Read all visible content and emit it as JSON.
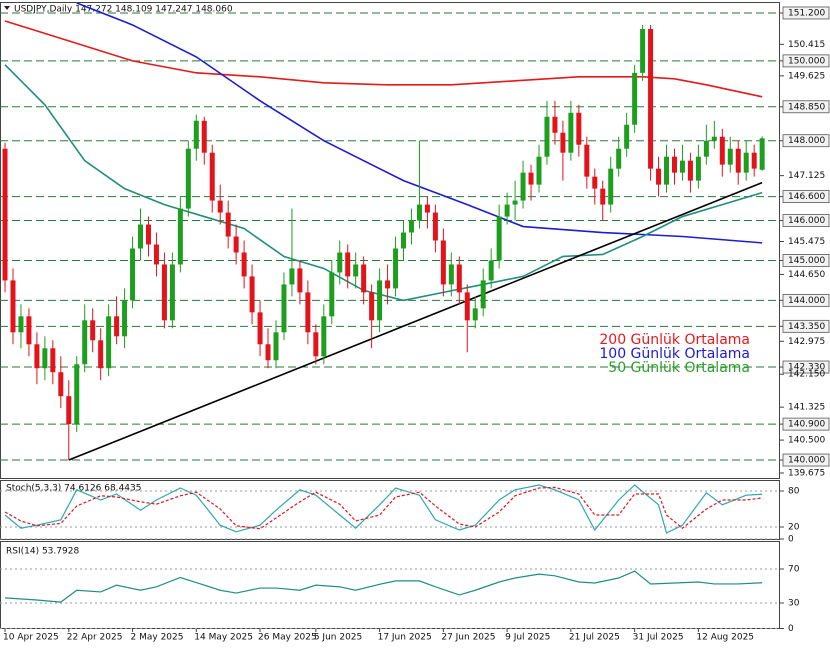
{
  "chart_data": [
    {
      "type": "candlestick",
      "title": "USDJPY,Daily 147.272 148.109 147.247 148.060",
      "categories": [
        "10 Apr 2025",
        null,
        null,
        null,
        null,
        null,
        null,
        null,
        "22 Apr 2025",
        null,
        null,
        null,
        null,
        null,
        null,
        null,
        "2 May 2025",
        null,
        null,
        null,
        null,
        null,
        null,
        null,
        "14 May 2025",
        null,
        null,
        null,
        null,
        null,
        null,
        null,
        "26 May 2025",
        null,
        null,
        null,
        null,
        null,
        null,
        "5 Jun 2025",
        null,
        null,
        null,
        null,
        null,
        null,
        null,
        "17 Jun 2025",
        null,
        null,
        null,
        null,
        null,
        null,
        null,
        "27 Jun 2025",
        null,
        null,
        null,
        null,
        null,
        null,
        null,
        "9 Jul 2025",
        null,
        null,
        null,
        null,
        null,
        null,
        null,
        "21 Jul 2025",
        null,
        null,
        null,
        null,
        null,
        null,
        null,
        "31 Jul 2025",
        null,
        null,
        null,
        null,
        null,
        null,
        null,
        "12 Aug 2025",
        null,
        null,
        null,
        null,
        null,
        null,
        null,
        null
      ],
      "xlim": [
        -0.63,
        97.24
      ],
      "ylim": [
        139.55,
        151.45
      ],
      "yticks": [
        {
          "value": 151.2,
          "label": "151.200",
          "level": true
        },
        {
          "value": 150.415,
          "label": "150.415"
        },
        {
          "value": 150.0,
          "label": "150.000",
          "level": true
        },
        {
          "value": 149.625,
          "label": "149.625"
        },
        {
          "value": 148.85,
          "label": "148.850",
          "level": true
        },
        {
          "value": 148.0,
          "label": "148.000",
          "level": true
        },
        {
          "value": 147.125,
          "label": "147.125"
        },
        {
          "value": 146.6,
          "label": "146.600",
          "level": true
        },
        {
          "value": 146.0,
          "label": "146.000",
          "level": true
        },
        {
          "value": 145.475,
          "label": "145.475"
        },
        {
          "value": 145.0,
          "label": "145.000",
          "level": true
        },
        {
          "value": 144.65,
          "label": "144.650"
        },
        {
          "value": 144.0,
          "label": "144.000",
          "level": true
        },
        {
          "value": 143.35,
          "label": "143.350",
          "level": true
        },
        {
          "value": 142.975,
          "label": "142.975"
        },
        {
          "value": 142.33,
          "label": "142.330",
          "level": true
        },
        {
          "value": 142.15,
          "label": "142.150"
        },
        {
          "value": 141.325,
          "label": "141.325"
        },
        {
          "value": 140.9,
          "label": "140.900",
          "level": true
        },
        {
          "value": 140.5,
          "label": "140.500"
        },
        {
          "value": 140.0,
          "label": "140.000",
          "level": true
        },
        {
          "value": 139.675,
          "label": "139.675"
        }
      ],
      "up_color": "#1e9e1e",
      "down_color": "#e3131b",
      "level_color": "#2a7a3a",
      "ohlc": [
        [
          147.8,
          147.95,
          144.2,
          144.5
        ],
        [
          144.5,
          144.8,
          142.9,
          143.2
        ],
        [
          143.2,
          143.9,
          142.8,
          143.6
        ],
        [
          143.6,
          143.8,
          142.6,
          142.9
        ],
        [
          142.9,
          143.2,
          141.9,
          142.3
        ],
        [
          142.3,
          143.1,
          142.0,
          142.8
        ],
        [
          142.8,
          143.0,
          141.9,
          142.2
        ],
        [
          142.2,
          142.6,
          141.3,
          141.6
        ],
        [
          141.6,
          142.0,
          140.0,
          140.9
        ],
        [
          140.9,
          142.6,
          140.7,
          142.4
        ],
        [
          142.4,
          143.9,
          142.2,
          143.5
        ],
        [
          143.5,
          143.8,
          142.7,
          143.0
        ],
        [
          143.0,
          143.3,
          142.0,
          142.3
        ],
        [
          142.3,
          143.9,
          142.1,
          143.6
        ],
        [
          143.6,
          144.1,
          142.9,
          143.1
        ],
        [
          143.1,
          144.3,
          142.8,
          144.0
        ],
        [
          144.0,
          145.6,
          143.8,
          145.3
        ],
        [
          145.3,
          146.3,
          145.0,
          145.9
        ],
        [
          145.9,
          146.1,
          145.1,
          145.4
        ],
        [
          145.4,
          145.7,
          144.6,
          144.9
        ],
        [
          144.9,
          145.2,
          143.3,
          143.5
        ],
        [
          143.5,
          145.2,
          143.3,
          144.9
        ],
        [
          144.9,
          146.6,
          144.7,
          146.3
        ],
        [
          146.3,
          148.0,
          146.1,
          147.8
        ],
        [
          147.8,
          148.65,
          147.5,
          148.5
        ],
        [
          148.5,
          148.6,
          147.4,
          147.7
        ],
        [
          147.7,
          147.9,
          146.2,
          146.5
        ],
        [
          146.5,
          146.9,
          145.9,
          146.2
        ],
        [
          146.2,
          146.5,
          145.3,
          145.6
        ],
        [
          145.6,
          145.9,
          144.9,
          145.2
        ],
        [
          145.2,
          145.5,
          144.3,
          144.6
        ],
        [
          144.6,
          144.9,
          143.4,
          143.7
        ],
        [
          143.7,
          144.0,
          142.6,
          142.9
        ],
        [
          142.9,
          143.3,
          142.3,
          142.5
        ],
        [
          142.5,
          143.5,
          142.3,
          143.2
        ],
        [
          143.2,
          144.7,
          143.0,
          144.4
        ],
        [
          144.4,
          146.3,
          144.1,
          144.8
        ],
        [
          144.8,
          145.0,
          143.9,
          144.2
        ],
        [
          144.2,
          144.5,
          142.9,
          143.2
        ],
        [
          143.2,
          143.4,
          142.4,
          142.6
        ],
        [
          142.6,
          143.9,
          142.4,
          143.6
        ],
        [
          143.6,
          145.0,
          143.4,
          144.7
        ],
        [
          144.7,
          145.5,
          144.4,
          145.2
        ],
        [
          145.2,
          145.4,
          144.3,
          144.6
        ],
        [
          144.6,
          145.2,
          144.3,
          144.9
        ],
        [
          144.9,
          145.1,
          143.9,
          144.2
        ],
        [
          144.2,
          144.4,
          142.8,
          143.5
        ],
        [
          143.5,
          144.8,
          143.2,
          144.5
        ],
        [
          144.5,
          144.9,
          143.9,
          144.3
        ],
        [
          144.3,
          145.6,
          144.1,
          145.3
        ],
        [
          145.3,
          146.0,
          145.0,
          145.7
        ],
        [
          145.7,
          146.3,
          145.4,
          146.0
        ],
        [
          146.0,
          148.0,
          145.8,
          146.4
        ],
        [
          146.4,
          146.6,
          145.8,
          146.2
        ],
        [
          146.2,
          146.4,
          145.2,
          145.5
        ],
        [
          145.5,
          145.8,
          144.1,
          144.4
        ],
        [
          144.4,
          145.2,
          144.1,
          144.9
        ],
        [
          144.9,
          145.1,
          143.9,
          144.2
        ],
        [
          144.2,
          144.4,
          142.7,
          143.5
        ],
        [
          143.5,
          144.1,
          143.3,
          143.8
        ],
        [
          143.8,
          144.8,
          143.6,
          144.5
        ],
        [
          144.5,
          145.3,
          144.3,
          145.0
        ],
        [
          145.0,
          146.4,
          144.8,
          146.1
        ],
        [
          146.1,
          146.7,
          145.9,
          146.4
        ],
        [
          146.4,
          147.0,
          146.0,
          146.5
        ],
        [
          146.5,
          147.5,
          146.3,
          147.2
        ],
        [
          147.2,
          147.4,
          146.5,
          146.9
        ],
        [
          146.9,
          147.9,
          146.7,
          147.6
        ],
        [
          147.6,
          149.0,
          147.4,
          148.6
        ],
        [
          148.6,
          149.0,
          147.9,
          148.2
        ],
        [
          148.2,
          148.5,
          147.0,
          147.7
        ],
        [
          147.7,
          149.0,
          147.5,
          148.7
        ],
        [
          148.7,
          148.9,
          147.6,
          147.9
        ],
        [
          147.9,
          148.1,
          146.8,
          147.1
        ],
        [
          147.1,
          147.3,
          146.4,
          146.8
        ],
        [
          146.8,
          147.0,
          146.0,
          146.4
        ],
        [
          146.4,
          147.6,
          146.2,
          147.3
        ],
        [
          147.3,
          148.1,
          147.1,
          147.8
        ],
        [
          147.8,
          148.7,
          147.6,
          148.4
        ],
        [
          148.4,
          149.9,
          148.2,
          149.7
        ],
        [
          149.7,
          150.9,
          149.5,
          150.8
        ],
        [
          150.8,
          150.9,
          147.0,
          147.3
        ],
        [
          147.3,
          147.6,
          146.6,
          146.9
        ],
        [
          146.9,
          147.9,
          146.7,
          147.6
        ],
        [
          147.6,
          147.8,
          146.9,
          147.2
        ],
        [
          147.2,
          147.9,
          147.0,
          147.5
        ],
        [
          147.5,
          147.7,
          146.7,
          147.0
        ],
        [
          147.0,
          147.9,
          146.8,
          147.6
        ],
        [
          147.6,
          148.4,
          147.4,
          148.0
        ],
        [
          148.0,
          148.5,
          147.8,
          148.1
        ],
        [
          148.1,
          148.3,
          147.1,
          147.4
        ],
        [
          147.4,
          148.1,
          147.2,
          147.8
        ],
        [
          147.8,
          148.0,
          146.9,
          147.2
        ],
        [
          147.2,
          148.0,
          147.0,
          147.7
        ],
        [
          147.7,
          147.9,
          147.1,
          147.3
        ],
        [
          147.272,
          148.109,
          147.247,
          148.06
        ]
      ],
      "lines": [
        {
          "name": "200 Günlük Ortalama",
          "color": "#e31a1c",
          "x": [
            0,
            8,
            16,
            24,
            32,
            40,
            48,
            56,
            64,
            72,
            80,
            84,
            88,
            95
          ],
          "values": [
            151.0,
            150.5,
            150.0,
            149.7,
            149.6,
            149.45,
            149.4,
            149.4,
            149.5,
            149.6,
            149.6,
            149.55,
            149.4,
            149.1
          ]
        },
        {
          "name": "100 Günlük Ortalama",
          "color": "#1c1cd4",
          "x": [
            9,
            16,
            24,
            32,
            40,
            50,
            58,
            65,
            75,
            85,
            95
          ],
          "values": [
            151.45,
            150.9,
            150.1,
            149.0,
            148.0,
            147.0,
            146.4,
            145.85,
            145.7,
            145.6,
            145.44
          ]
        },
        {
          "name": "50 Günlük Ortalama",
          "color": "#1f8f7a",
          "x": [
            0,
            5,
            10,
            15,
            20,
            25,
            30,
            35,
            40,
            45,
            50,
            55,
            60,
            65,
            70,
            75,
            80,
            85,
            90,
            95
          ],
          "values": [
            149.9,
            148.9,
            147.5,
            146.8,
            146.4,
            146.1,
            145.8,
            145.1,
            144.8,
            144.25,
            144.0,
            144.2,
            144.4,
            144.6,
            145.1,
            145.15,
            145.6,
            146.1,
            146.4,
            146.7
          ]
        }
      ],
      "legend_colors": [
        "#e31a1c",
        "#1c1cd4",
        "#2aa02a"
      ],
      "trendline": {
        "color": "#000000",
        "x": [
          8,
          95
        ],
        "values": [
          140.0,
          146.95
        ]
      }
    },
    {
      "type": "line",
      "title": "Stoch(5,3,3) 74.6126 68.4435",
      "xlim": [
        -0.63,
        97.24
      ],
      "ylim": [
        0,
        100
      ],
      "yticks": [
        0,
        20,
        80
      ],
      "series": [
        {
          "color": "#2fa6b0",
          "dash": false,
          "x": [
            0,
            2,
            4,
            7,
            9,
            12,
            14,
            17,
            19,
            22,
            24,
            27,
            29,
            32,
            34,
            37,
            39,
            42,
            44,
            47,
            49,
            52,
            54,
            57,
            59,
            62,
            64,
            67,
            69,
            72,
            74,
            77,
            79,
            82,
            83,
            85,
            88,
            90,
            93,
            95
          ],
          "values": [
            40,
            18,
            23,
            32,
            82,
            65,
            75,
            48,
            65,
            85,
            73,
            23,
            12,
            23,
            48,
            82,
            73,
            40,
            18,
            57,
            85,
            73,
            32,
            15,
            23,
            65,
            82,
            90,
            82,
            65,
            15,
            65,
            90,
            57,
            10,
            23,
            77,
            57,
            73,
            74.6126
          ]
        },
        {
          "color": "#e3131b",
          "dash": true,
          "x": [
            0,
            2,
            4,
            7,
            9,
            12,
            14,
            17,
            19,
            22,
            24,
            27,
            29,
            32,
            34,
            37,
            39,
            42,
            44,
            47,
            49,
            52,
            54,
            57,
            59,
            62,
            64,
            67,
            69,
            72,
            74,
            77,
            79,
            82,
            83,
            85,
            88,
            90,
            93,
            95
          ],
          "values": [
            45,
            30,
            22,
            26,
            55,
            72,
            70,
            62,
            58,
            72,
            78,
            50,
            22,
            17,
            35,
            62,
            78,
            58,
            30,
            40,
            70,
            78,
            55,
            25,
            20,
            45,
            72,
            85,
            86,
            75,
            40,
            40,
            75,
            75,
            40,
            18,
            50,
            65,
            65,
            68.4435
          ]
        }
      ]
    },
    {
      "type": "line",
      "title": "RSI(14) 53.7928",
      "xlim": [
        -0.63,
        97.24
      ],
      "ylim": [
        0,
        100
      ],
      "yticks": [
        0,
        30,
        70
      ],
      "series": [
        {
          "color": "#1f8f80",
          "dash": false,
          "x": [
            0,
            4,
            7,
            9,
            12,
            14,
            17,
            19,
            22,
            24,
            27,
            29,
            32,
            34,
            37,
            39,
            42,
            44,
            47,
            49,
            52,
            54,
            57,
            59,
            62,
            64,
            67,
            69,
            72,
            74,
            77,
            79,
            81,
            84,
            87,
            89,
            92,
            95
          ],
          "values": [
            36,
            33.5,
            31,
            45,
            43,
            51,
            45,
            49,
            60,
            54,
            45,
            41.7,
            47.6,
            47.6,
            45,
            51,
            49,
            45,
            52,
            56,
            56,
            49,
            39.5,
            45,
            54.7,
            59.4,
            64,
            62,
            54.7,
            53.5,
            59.4,
            67.6,
            52.4,
            53.5,
            54.7,
            52.4,
            52.4,
            53.79
          ]
        }
      ]
    }
  ]
}
